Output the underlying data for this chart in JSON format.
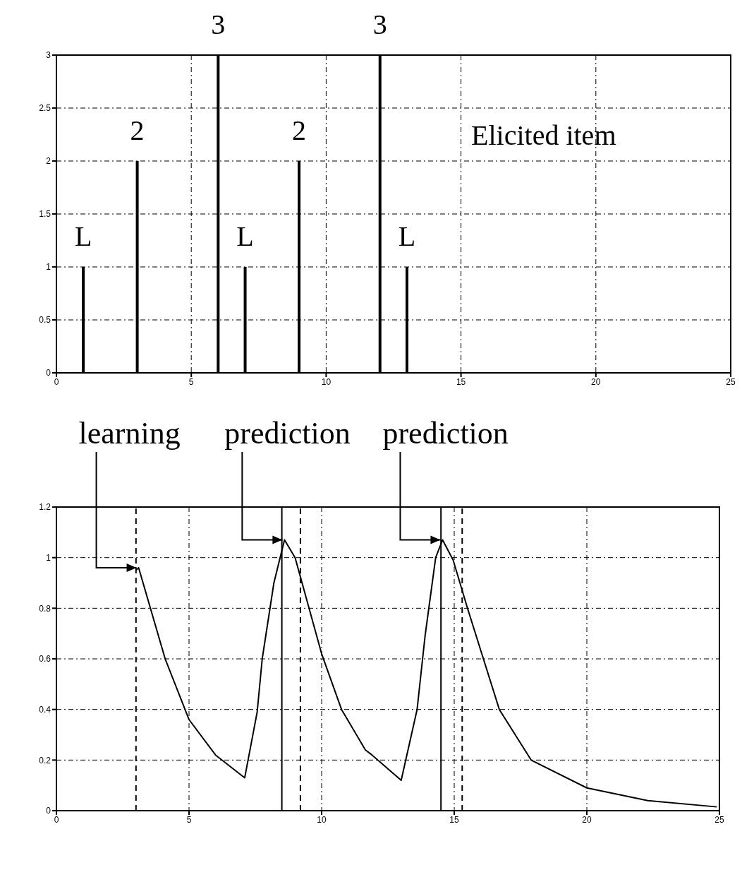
{
  "chart_data": [
    {
      "type": "bar",
      "x": [
        1,
        3,
        6,
        7,
        9,
        12,
        13
      ],
      "values": [
        1,
        2,
        3,
        1,
        2,
        3,
        1
      ],
      "color": "#000000",
      "value_labels": [
        "L",
        "2",
        "3",
        "L",
        "2",
        "3",
        "L"
      ],
      "xlim": [
        0,
        25
      ],
      "xticks": [
        0,
        5,
        10,
        15,
        20,
        25
      ],
      "ylim": [
        0,
        3
      ],
      "yticks": [
        0,
        0.5,
        1,
        1.5,
        2,
        2.5,
        3
      ],
      "grid": true,
      "annotations": [
        "Elicited item"
      ]
    },
    {
      "type": "line",
      "color": "#000000",
      "x": [
        3,
        3.1,
        4.1,
        5,
        6,
        7.1,
        7.57,
        7.76,
        8.2,
        8.6,
        9,
        10,
        10.75,
        11.65,
        11.9,
        13,
        13.6,
        13.9,
        14.3,
        14.56,
        14.96,
        15.5,
        16.1,
        16.7,
        17.9,
        20,
        22.3,
        24.9
      ],
      "values": [
        0.95,
        0.96,
        0.6,
        0.36,
        0.22,
        0.13,
        0.39,
        0.6,
        0.9,
        1.07,
        1,
        0.62,
        0.4,
        0.24,
        0.22,
        0.12,
        0.4,
        0.69,
        1,
        1.07,
        0.99,
        0.8,
        0.6,
        0.4,
        0.2,
        0.09,
        0.04,
        0.015
      ],
      "xlim": [
        0,
        25
      ],
      "xticks": [
        0,
        5,
        10,
        15,
        20,
        25
      ],
      "ylim": [
        0,
        1.2
      ],
      "yticks": [
        0,
        0.2,
        0.4,
        0.6,
        0.8,
        1,
        1.2
      ],
      "grid": true,
      "marker": "none",
      "line_style": "solid",
      "ref_lines": [
        {
          "axis": "x",
          "value": 3,
          "line_style": "dashed",
          "color": "#000000"
        },
        {
          "axis": "x",
          "value": 8.5,
          "line_style": "solid",
          "color": "#000000"
        },
        {
          "axis": "x",
          "value": 9.2,
          "line_style": "dashed",
          "color": "#000000"
        },
        {
          "axis": "x",
          "value": 14.5,
          "line_style": "solid",
          "color": "#000000"
        },
        {
          "axis": "x",
          "value": 15.3,
          "line_style": "dashed",
          "color": "#000000"
        }
      ],
      "annotations": [
        {
          "text": "learning",
          "x": 3.1,
          "y": 0.96
        },
        {
          "text": "prediction",
          "x": 8.6,
          "y": 1.07
        },
        {
          "text": "prediction",
          "x": 14.56,
          "y": 1.07
        }
      ]
    }
  ]
}
